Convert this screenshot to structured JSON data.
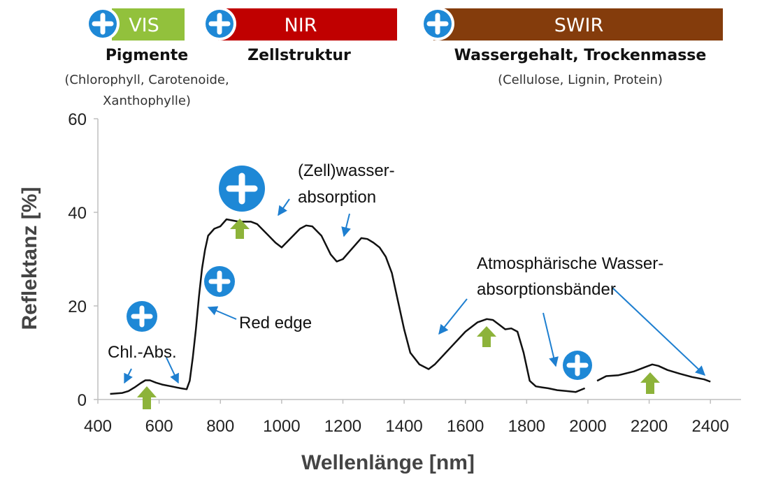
{
  "chart_data": {
    "type": "line",
    "title": "",
    "xlabel": "Wellenlänge [nm]",
    "ylabel": "Reflektanz [%]",
    "xlim": [
      400,
      2500
    ],
    "ylim": [
      0,
      60
    ],
    "xticks": [
      400,
      600,
      800,
      1000,
      1200,
      1400,
      1600,
      1800,
      2000,
      2200,
      2400
    ],
    "yticks": [
      0,
      20,
      40,
      60
    ],
    "grid": false,
    "series": [
      {
        "name": "",
        "segments": [
          {
            "x": [
              440,
              480,
              500,
              520,
              540,
              555,
              570,
              590,
              610,
              640,
              670,
              690,
              700,
              710,
              720,
              730,
              740,
              750,
              760,
              780,
              800,
              820,
              860,
              900,
              920,
              950,
              980,
              1000,
              1030,
              1060,
              1080,
              1100,
              1130,
              1160,
              1180,
              1200,
              1220,
              1240,
              1260,
              1280,
              1300,
              1320,
              1340,
              1360,
              1380,
              1400,
              1420,
              1450,
              1480,
              1500,
              1550,
              1600,
              1640,
              1670,
              1690,
              1710,
              1730,
              1750,
              1770,
              1790,
              1810,
              1830,
              1850,
              1870,
              1900,
              1930,
              1960,
              1990
            ],
            "y": [
              1.2,
              1.4,
              1.8,
              2.6,
              3.5,
              4.1,
              4.1,
              3.6,
              3.2,
              2.8,
              2.4,
              2.2,
              4,
              9,
              15,
              22,
              28,
              32,
              35,
              36.5,
              37,
              38.5,
              38,
              38,
              37.5,
              35.5,
              33.5,
              32.5,
              34.5,
              36.5,
              37.2,
              37,
              35,
              31,
              29.5,
              30,
              31.5,
              33,
              34.5,
              34.3,
              33.5,
              32.5,
              30.5,
              27,
              21,
              15,
              10,
              7.5,
              6.5,
              7.5,
              11,
              14.5,
              16.5,
              17.2,
              17,
              16,
              15,
              15.2,
              14.5,
              10,
              4,
              2.8,
              2.6,
              2.4,
              2,
              1.8,
              1.6,
              2.4
            ]
          },
          {
            "x": [
              2030,
              2060,
              2100,
              2150,
              2190,
              2210,
              2230,
              2260,
              2300,
              2340,
              2380,
              2400
            ],
            "y": [
              4,
              5,
              5.2,
              6,
              7,
              7.5,
              7.2,
              6.3,
              5.5,
              4.8,
              4.3,
              3.8
            ]
          }
        ]
      }
    ]
  },
  "bands": {
    "vis": {
      "label": "VIS",
      "heading": "Pigmente",
      "detail_line1": "(Chlorophyll, Carotenoide,",
      "detail_line2": "Xanthophylle)",
      "color": "#92c13c"
    },
    "nir": {
      "label": "NIR",
      "heading": "Zellstruktur",
      "color": "#c00000"
    },
    "swir": {
      "label": "SWIR",
      "heading": "Wassergehalt, Trockenmasse",
      "detail_line1": "(Cellulose, Lignin, Protein)",
      "color": "#843c0c"
    }
  },
  "annotations": {
    "chl_abs": "Chl.-Abs.",
    "red_edge": "Red edge",
    "cell_water_line1": "(Zell)wasser-",
    "cell_water_line2": "absorption",
    "atmo_line1": "Atmosphärische Wasser-",
    "atmo_line2": "absorptionsbänder"
  },
  "colors": {
    "plus_badge": "#1e88d6",
    "up_arrow": "#8db33a",
    "pointer_arrow": "#1e7fd0",
    "curve": "#111111"
  },
  "icons": [
    "plus-icon",
    "up-arrow-icon"
  ]
}
